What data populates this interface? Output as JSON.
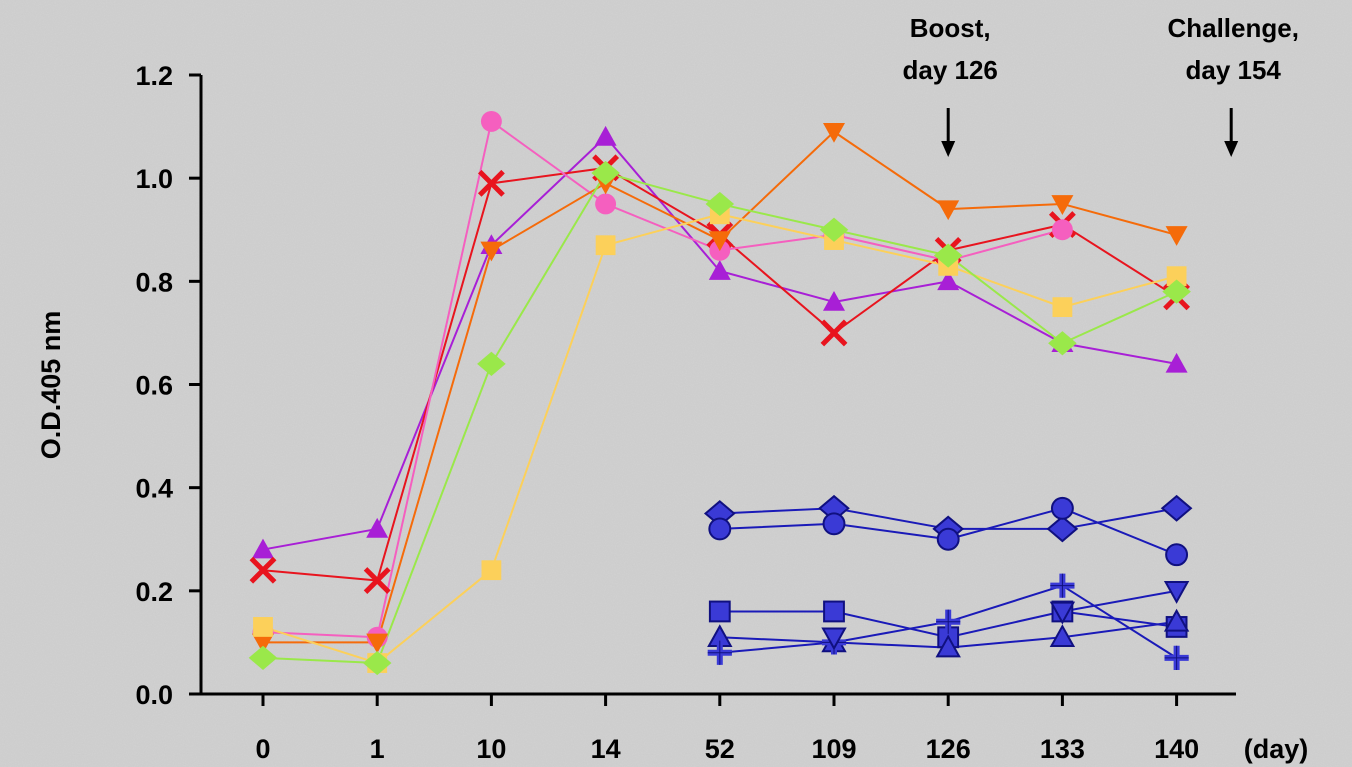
{
  "chart_data": {
    "type": "line",
    "title": "",
    "ylabel": "O.D.405 nm",
    "x_unit_label": "(day)",
    "ylim": [
      0,
      1.2
    ],
    "y_ticks": [
      "0.0",
      "0.2",
      "0.4",
      "0.6",
      "0.8",
      "1.0",
      "1.2"
    ],
    "categories": [
      "0",
      "1",
      "10",
      "14",
      "52",
      "109",
      "126",
      "133",
      "140"
    ],
    "annotations": [
      {
        "lines": [
          "Boost,",
          "day 126"
        ],
        "at_category": "126"
      },
      {
        "lines": [
          "Challenge,",
          "day 154"
        ],
        "at_category": "154"
      }
    ],
    "series": [
      {
        "marker": "triangle-up",
        "color": "#a81fd6",
        "values": [
          0.28,
          0.32,
          0.87,
          1.08,
          0.82,
          0.76,
          0.8,
          0.68,
          0.64
        ]
      },
      {
        "marker": "x",
        "color": "#e8141e",
        "values": [
          0.24,
          0.22,
          0.99,
          1.02,
          0.89,
          0.7,
          0.86,
          0.91,
          0.77
        ]
      },
      {
        "marker": "circle",
        "color": "#f55fbf",
        "values": [
          0.12,
          0.11,
          1.11,
          0.95,
          0.86,
          0.89,
          0.84,
          0.9,
          null
        ]
      },
      {
        "marker": "triangle-down",
        "color": "#f56b0a",
        "values": [
          0.1,
          0.1,
          0.86,
          0.99,
          0.88,
          1.09,
          0.94,
          0.95,
          0.89
        ]
      },
      {
        "marker": "square",
        "color": "#fcd05a",
        "values": [
          0.13,
          0.06,
          0.24,
          0.87,
          0.93,
          0.88,
          0.83,
          0.75,
          0.81
        ]
      },
      {
        "marker": "diamond",
        "color": "#9ae84a",
        "values": [
          0.07,
          0.06,
          0.64,
          1.01,
          0.95,
          0.9,
          0.85,
          0.68,
          0.78
        ]
      },
      {
        "marker": "diamond",
        "color": "#1a1ab8",
        "values": [
          null,
          null,
          null,
          null,
          0.35,
          0.36,
          0.32,
          0.32,
          0.36
        ]
      },
      {
        "marker": "circle",
        "color": "#1a1ab8",
        "values": [
          null,
          null,
          null,
          null,
          0.32,
          0.33,
          0.3,
          0.36,
          0.27
        ]
      },
      {
        "marker": "square",
        "color": "#1a1ab8",
        "values": [
          null,
          null,
          null,
          null,
          0.16,
          0.16,
          0.11,
          0.16,
          0.13
        ]
      },
      {
        "marker": "triangle-up",
        "color": "#1a1ab8",
        "values": [
          null,
          null,
          null,
          null,
          0.11,
          0.1,
          0.09,
          0.11,
          0.14
        ]
      },
      {
        "marker": "plus",
        "color": "#1a1ab8",
        "values": [
          null,
          null,
          null,
          null,
          0.08,
          0.1,
          0.14,
          0.21,
          0.07
        ]
      },
      {
        "marker": "triangle-down",
        "color": "#1a1ab8",
        "values": [
          null,
          null,
          null,
          null,
          null,
          0.11,
          null,
          0.16,
          0.2
        ]
      }
    ]
  }
}
